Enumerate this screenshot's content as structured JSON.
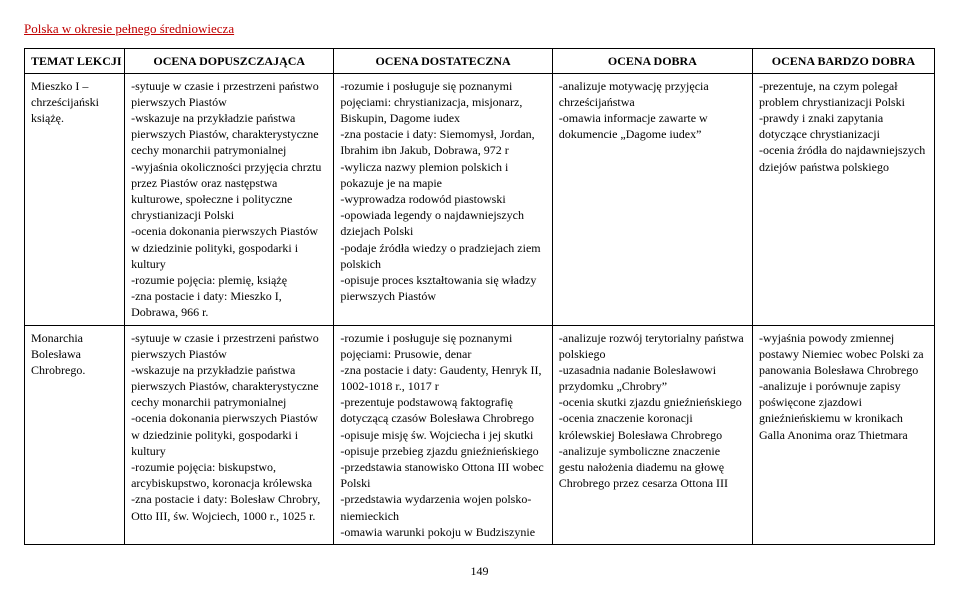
{
  "title": "Polska w okresie pełnego średniowiecza",
  "headers": [
    "TEMAT LEKCJI",
    "OCENA DOPUSZCZAJĄCA",
    "OCENA DOSTATECZNA",
    "OCENA DOBRA",
    "OCENA BARDZO DOBRA"
  ],
  "rows": [
    {
      "topic": "Mieszko I – chrześcijański książę.",
      "c2": "-sytuuje w czasie i przestrzeni państwo pierwszych Piastów\n-wskazuje na przykładzie państwa pierwszych Piastów, charakterystyczne cechy monarchii patrymonialnej\n-wyjaśnia okoliczności przyjęcia chrztu przez Piastów oraz następstwa kulturowe, społeczne i polityczne chrystianizacji Polski\n-ocenia dokonania pierwszych Piastów w dziedzinie polityki, gospodarki i kultury\n-rozumie pojęcia: plemię, książę\n-zna postacie i daty: Mieszko I, Dobrawa, 966 r.",
      "c3": "-rozumie i posługuje się poznanymi pojęciami: chrystianizacja, misjonarz, Biskupin, Dagome iudex\n-zna postacie i daty: Siemomysł, Jordan, Ibrahim ibn Jakub, Dobrawa, 972 r\n-wylicza nazwy plemion polskich i pokazuje je na mapie\n-wyprowadza rodowód piastowski\n-opowiada legendy o najdawniejszych dziejach Polski\n-podaje źródła wiedzy o pradziejach ziem polskich\n-opisuje proces kształtowania się władzy pierwszych Piastów",
      "c4": "-analizuje motywację przyjęcia chrześcijaństwa\n-omawia informacje zawarte w dokumencie „Dagome iudex”",
      "c5": "-prezentuje, na czym polegał problem chrystianizacji Polski\n-prawdy i znaki zapytania dotyczące chrystianizacji\n-ocenia źródła do najdawniejszych dziejów państwa polskiego"
    },
    {
      "topic": "Monarchia Bolesława Chrobrego.",
      "c2": "-sytuuje w czasie i przestrzeni państwo pierwszych Piastów\n-wskazuje na przykładzie państwa pierwszych Piastów, charakterystyczne cechy monarchii patrymonialnej\n-ocenia dokonania pierwszych Piastów w dziedzinie polityki, gospodarki i kultury\n-rozumie pojęcia: biskupstwo, arcybiskupstwo, koronacja królewska\n-zna postacie i daty: Bolesław Chrobry, Otto III, św. Wojciech, 1000 r., 1025 r.",
      "c3": "-rozumie i posługuje się poznanymi pojęciami: Prusowie, denar\n-zna postacie i daty: Gaudenty, Henryk II, 1002-1018 r., 1017 r\n-prezentuje podstawową faktografię dotyczącą czasów Bolesława Chrobrego\n-opisuje misję św. Wojciecha i jej skutki\n-opisuje przebieg zjazdu gnieźnieńskiego\n-przedstawia stanowisko Ottona III wobec Polski\n-przedstawia wydarzenia wojen polsko-niemieckich\n-omawia warunki pokoju w Budziszynie",
      "c4": "-analizuje rozwój terytorialny państwa polskiego\n-uzasadnia nadanie Bolesławowi przydomku „Chrobry”\n-ocenia skutki zjazdu gnieźnieńskiego\n-ocenia znaczenie koronacji królewskiej Bolesława Chrobrego\n-analizuje symboliczne znaczenie gestu nałożenia diademu na głowę Chrobrego przez cesarza Ottona III",
      "c5": "-wyjaśnia powody zmiennej postawy Niemiec wobec Polski za panowania Bolesława Chrobrego\n-analizuje i porównuje zapisy poświęcone zjazdowi gnieźnieńskiemu w kronikach Galla Anonima oraz Thietmara"
    }
  ],
  "pageNumber": "149"
}
